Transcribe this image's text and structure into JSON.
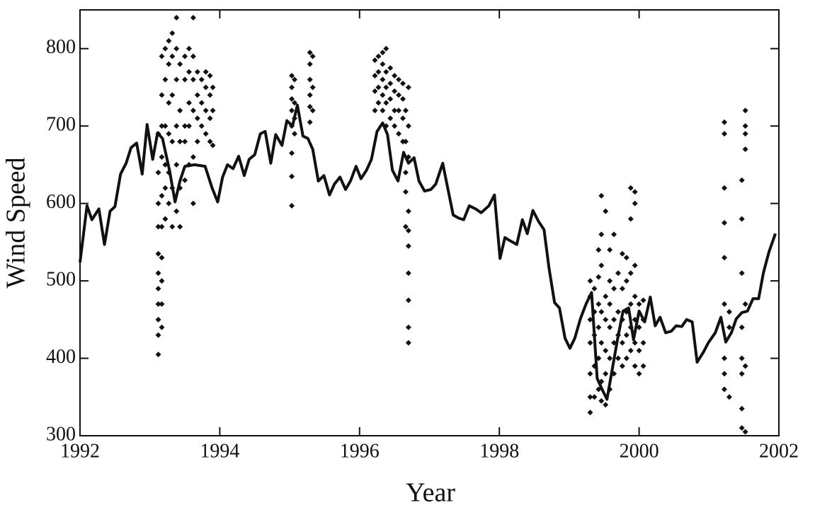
{
  "chart_data": {
    "type": "line",
    "x_label": "Year",
    "y_label": "Wind Speed",
    "xlim": [
      1992,
      2002
    ],
    "xticks": [
      1992,
      1994,
      1996,
      1998,
      2000,
      2002
    ],
    "ylim": [
      300,
      850
    ],
    "yticks": [
      300,
      400,
      500,
      600,
      700,
      800
    ],
    "series": [
      {
        "type": "line",
        "color": "#111111",
        "x": [
          1992.0,
          1992.1,
          1992.17,
          1992.27,
          1992.35,
          1992.43,
          1992.5,
          1992.58,
          1992.66,
          1992.73,
          1992.81,
          1992.89,
          1992.96,
          1993.04,
          1993.11,
          1993.18,
          1993.28,
          1993.36,
          1993.43,
          1993.5,
          1993.64,
          1993.79,
          1993.89,
          1993.97,
          1994.04,
          1994.11,
          1994.19,
          1994.27,
          1994.35,
          1994.42,
          1994.5,
          1994.58,
          1994.65,
          1994.73,
          1994.8,
          1994.89,
          1994.96,
          1995.04,
          1995.11,
          1995.19,
          1995.26,
          1995.33,
          1995.41,
          1995.49,
          1995.57,
          1995.64,
          1995.72,
          1995.8,
          1995.87,
          1995.95,
          1996.02,
          1996.1,
          1996.17,
          1996.25,
          1996.33,
          1996.4,
          1996.47,
          1996.55,
          1996.63,
          1996.7,
          1996.78,
          1996.85,
          1996.93,
          1997.02,
          1997.09,
          1997.19,
          1997.27,
          1997.34,
          1997.42,
          1997.49,
          1997.57,
          1997.66,
          1997.74,
          1997.85,
          1997.93,
          1998.01,
          1998.08,
          1998.15,
          1998.25,
          1998.33,
          1998.4,
          1998.48,
          1998.56,
          1998.64,
          1998.71,
          1998.79,
          1998.86,
          1998.94,
          1999.01,
          1999.08,
          1999.16,
          1999.24,
          1999.32,
          1999.4,
          1999.47,
          1999.54,
          1999.62,
          1999.69,
          1999.77,
          1999.85,
          1999.92,
          2000.0,
          2000.08,
          2000.16,
          2000.23,
          2000.3,
          2000.38,
          2000.46,
          2000.53,
          2000.61,
          2000.68,
          2000.76,
          2000.83,
          2000.92,
          2000.99,
          2001.09,
          2001.17,
          2001.24,
          2001.32,
          2001.39,
          2001.47,
          2001.55,
          2001.63,
          2001.71,
          2001.78,
          2001.86,
          2001.95
        ],
        "values": [
          524,
          597,
          579,
          593,
          547,
          590,
          596,
          638,
          652,
          672,
          678,
          638,
          702,
          657,
          691,
          684,
          643,
          602,
          629,
          648,
          650,
          648,
          620,
          602,
          634,
          650,
          645,
          661,
          636,
          657,
          663,
          690,
          693,
          652,
          689,
          675,
          707,
          700,
          727,
          687,
          684,
          670,
          629,
          636,
          611,
          625,
          634,
          618,
          629,
          648,
          632,
          643,
          657,
          693,
          704,
          689,
          643,
          629,
          666,
          652,
          659,
          629,
          616,
          618,
          625,
          652,
          616,
          585,
          581,
          579,
          597,
          593,
          588,
          597,
          611,
          529,
          556,
          552,
          547,
          579,
          561,
          591,
          577,
          566,
          517,
          472,
          465,
          426,
          413,
          426,
          451,
          470,
          485,
          374,
          360,
          347,
          388,
          424,
          461,
          465,
          424,
          461,
          447,
          479,
          442,
          453,
          433,
          435,
          442,
          441,
          450,
          447,
          395,
          408,
          420,
          433,
          453,
          421,
          433,
          451,
          459,
          461,
          477,
          477,
          511,
          538,
          561
        ]
      },
      {
        "type": "scatter",
        "color": "#111111",
        "x": [
          1993.12,
          1993.12,
          1993.12,
          1993.12,
          1993.12,
          1993.12,
          1993.12,
          1993.12,
          1993.12,
          1993.12,
          1993.12,
          1993.17,
          1993.17,
          1993.17,
          1993.17,
          1993.17,
          1993.17,
          1993.17,
          1993.17,
          1993.17,
          1993.17,
          1993.22,
          1993.22,
          1993.22,
          1993.22,
          1993.22,
          1993.22,
          1993.27,
          1993.27,
          1993.27,
          1993.27,
          1993.27,
          1993.27,
          1993.32,
          1993.32,
          1993.32,
          1993.32,
          1993.32,
          1993.32,
          1993.38,
          1993.38,
          1993.38,
          1993.38,
          1993.38,
          1993.38,
          1993.43,
          1993.43,
          1993.43,
          1993.43,
          1993.43,
          1993.5,
          1993.5,
          1993.5,
          1993.5,
          1993.5,
          1993.56,
          1993.56,
          1993.56,
          1993.56,
          1993.56,
          1993.62,
          1993.62,
          1993.62,
          1993.62,
          1993.62,
          1993.62,
          1993.68,
          1993.68,
          1993.68,
          1993.68,
          1993.74,
          1993.74,
          1993.74,
          1993.8,
          1993.8,
          1993.8,
          1993.8,
          1993.86,
          1993.86,
          1993.86,
          1993.86,
          1993.9,
          1993.9,
          1993.9,
          1995.03,
          1995.03,
          1995.03,
          1995.03,
          1995.03,
          1995.03,
          1995.03,
          1995.03,
          1995.07,
          1995.07,
          1995.07,
          1995.07,
          1995.29,
          1995.29,
          1995.29,
          1995.29,
          1995.29,
          1995.29,
          1995.33,
          1995.33,
          1995.33,
          1996.22,
          1996.22,
          1996.22,
          1996.22,
          1996.27,
          1996.27,
          1996.27,
          1996.27,
          1996.33,
          1996.33,
          1996.33,
          1996.33,
          1996.33,
          1996.38,
          1996.38,
          1996.38,
          1996.38,
          1996.38,
          1996.44,
          1996.44,
          1996.44,
          1996.44,
          1996.5,
          1996.5,
          1996.5,
          1996.5,
          1996.56,
          1996.56,
          1996.56,
          1996.56,
          1996.62,
          1996.62,
          1996.62,
          1996.62,
          1996.66,
          1996.66,
          1996.66,
          1996.66,
          1996.66,
          1996.7,
          1996.7,
          1996.7,
          1996.7,
          1996.7,
          1996.7,
          1996.7,
          1996.7,
          1996.7,
          1996.7,
          1999.3,
          1999.3,
          1999.3,
          1999.3,
          1999.3,
          1999.3,
          1999.3,
          1999.36,
          1999.36,
          1999.36,
          1999.36,
          1999.36,
          1999.42,
          1999.42,
          1999.42,
          1999.42,
          1999.42,
          1999.42,
          1999.46,
          1999.46,
          1999.46,
          1999.46,
          1999.46,
          1999.46,
          1999.46,
          1999.52,
          1999.52,
          1999.52,
          1999.52,
          1999.52,
          1999.52,
          1999.58,
          1999.58,
          1999.58,
          1999.58,
          1999.58,
          1999.58,
          1999.64,
          1999.64,
          1999.64,
          1999.64,
          1999.64,
          1999.7,
          1999.7,
          1999.7,
          1999.7,
          1999.76,
          1999.76,
          1999.76,
          1999.76,
          1999.76,
          1999.82,
          1999.82,
          1999.82,
          1999.82,
          1999.82,
          1999.88,
          1999.88,
          1999.88,
          1999.88,
          1999.88,
          1999.88,
          1999.94,
          1999.94,
          1999.94,
          1999.94,
          1999.94,
          1999.94,
          1999.94,
          2000.0,
          2000.0,
          2000.0,
          2000.0,
          2000.06,
          2000.06,
          2000.06,
          2000.06,
          2001.22,
          2001.22,
          2001.22,
          2001.22,
          2001.22,
          2001.22,
          2001.22,
          2001.22,
          2001.22,
          2001.29,
          2001.29,
          2001.29,
          2001.47,
          2001.47,
          2001.47,
          2001.47,
          2001.47,
          2001.47,
          2001.47,
          2001.47,
          2001.52,
          2001.52,
          2001.52,
          2001.52,
          2001.52,
          2001.52,
          2001.52
        ],
        "values": [
          405,
          430,
          450,
          470,
          490,
          510,
          535,
          570,
          600,
          640,
          690,
          440,
          470,
          500,
          530,
          570,
          610,
          660,
          700,
          740,
          790,
          580,
          620,
          650,
          700,
          760,
          800,
          600,
          640,
          690,
          730,
          780,
          810,
          570,
          620,
          680,
          740,
          790,
          820,
          590,
          650,
          700,
          760,
          800,
          840,
          570,
          620,
          680,
          720,
          780,
          630,
          680,
          700,
          760,
          790,
          650,
          700,
          730,
          770,
          800,
          600,
          660,
          720,
          760,
          790,
          840,
          680,
          710,
          740,
          770,
          700,
          730,
          760,
          690,
          720,
          750,
          770,
          680,
          710,
          740,
          765,
          675,
          720,
          750,
          597,
          635,
          665,
          700,
          720,
          735,
          750,
          765,
          690,
          710,
          730,
          760,
          705,
          725,
          740,
          760,
          780,
          795,
          720,
          750,
          790,
          720,
          745,
          765,
          785,
          730,
          750,
          770,
          790,
          720,
          740,
          760,
          780,
          795,
          700,
          730,
          750,
          770,
          800,
          710,
          735,
          755,
          775,
          700,
          720,
          745,
          765,
          690,
          720,
          740,
          760,
          680,
          710,
          735,
          755,
          570,
          615,
          640,
          680,
          720,
          420,
          440,
          475,
          510,
          545,
          565,
          590,
          660,
          700,
          750,
          330,
          350,
          380,
          420,
          450,
          480,
          500,
          350,
          390,
          430,
          460,
          490,
          360,
          400,
          440,
          470,
          505,
          540,
          345,
          370,
          420,
          460,
          520,
          560,
          610,
          340,
          380,
          410,
          450,
          480,
          590,
          360,
          400,
          440,
          470,
          500,
          540,
          380,
          420,
          450,
          490,
          560,
          400,
          430,
          460,
          510,
          390,
          420,
          450,
          490,
          535,
          400,
          430,
          460,
          500,
          530,
          410,
          440,
          470,
          510,
          580,
          620,
          390,
          420,
          450,
          480,
          520,
          600,
          615,
          380,
          410,
          440,
          470,
          390,
          420,
          450,
          475,
          360,
          380,
          400,
          470,
          530,
          575,
          620,
          690,
          705,
          350,
          440,
          460,
          310,
          335,
          380,
          400,
          440,
          510,
          580,
          630,
          305,
          390,
          470,
          670,
          690,
          700,
          720
        ]
      }
    ]
  }
}
